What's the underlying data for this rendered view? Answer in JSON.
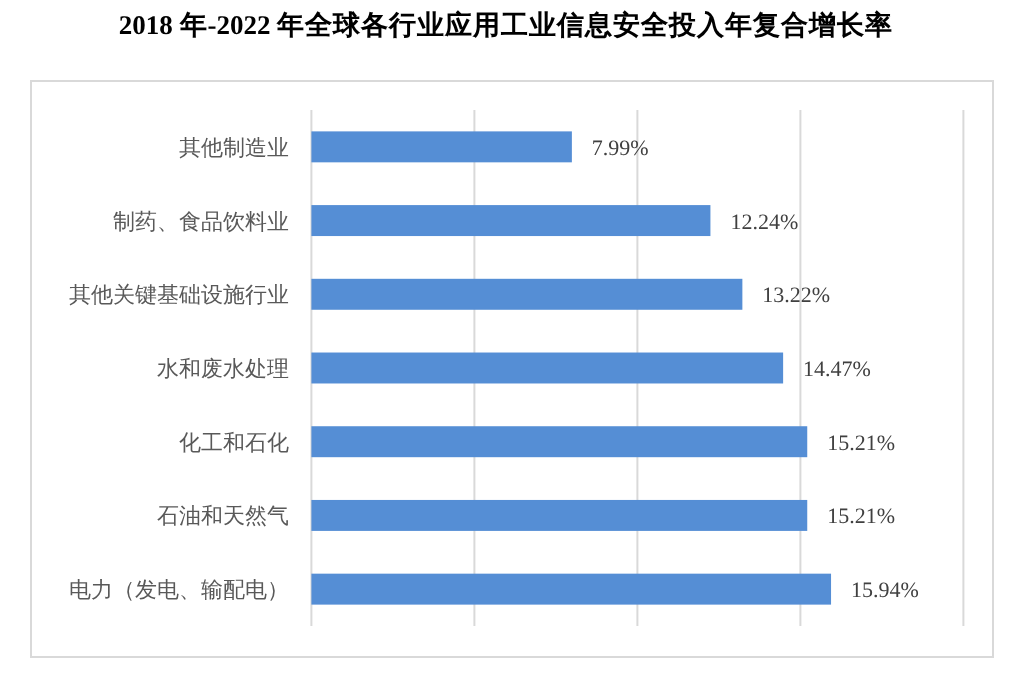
{
  "chart_data": {
    "type": "bar",
    "orientation": "horizontal",
    "title": "2018 年-2022 年全球各行业应用工业信息安全投入年复合增长率",
    "categories": [
      "其他制造业",
      "制药、食品饮料业",
      "其他关键基础设施行业",
      "水和废水处理",
      "化工和石化",
      "石油和天然气",
      "电力（发电、输配电）"
    ],
    "values": [
      7.99,
      12.24,
      13.22,
      14.47,
      15.21,
      15.21,
      15.94
    ],
    "value_labels": [
      "7.99%",
      "12.24%",
      "13.22%",
      "14.47%",
      "15.21%",
      "15.21%",
      "15.94%"
    ],
    "color": "#558ed5",
    "xlim": [
      0,
      20
    ],
    "xticks": [
      {
        "value": 0,
        "label": null
      },
      {
        "value": 5,
        "label": null
      },
      {
        "value": 10,
        "label": null
      },
      {
        "value": 15,
        "label": null
      },
      {
        "value": 20,
        "label": null
      }
    ],
    "tick_labels": "y",
    "grid": "x"
  }
}
